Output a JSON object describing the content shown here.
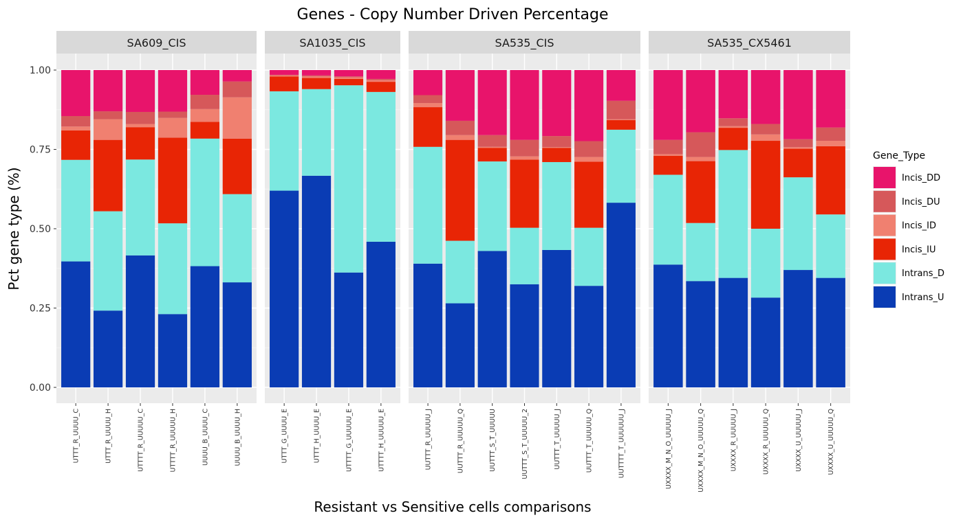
{
  "chart_data": {
    "type": "bar",
    "stacked": true,
    "title": "Genes - Copy Number Driven Percentage",
    "xlabel": "Resistant vs Sensitive cells comparisons",
    "ylabel": "Pct gene type (%)",
    "ylim": [
      0,
      1
    ],
    "yticks": [
      "0.00",
      "0.25",
      "0.50",
      "0.75",
      "1.00"
    ],
    "grid": true,
    "legend": {
      "title": "Gene_Type",
      "position": "right",
      "entries": [
        "Incis_DD",
        "Incis_DU",
        "Incis_ID",
        "Incis_IU",
        "Intrans_D",
        "Intrans_U"
      ]
    },
    "colors": {
      "Incis_DD": "#e8146b",
      "Incis_DU": "#d6585a",
      "Incis_ID": "#f08070",
      "Incis_IU": "#e82505",
      "Intrans_D": "#7be8e0",
      "Intrans_U": "#0a3cb4"
    },
    "stack_order": [
      "Intrans_U",
      "Intrans_D",
      "Incis_IU",
      "Incis_ID",
      "Incis_DU",
      "Incis_DD"
    ],
    "facets": [
      {
        "name": "SA609_CIS",
        "categories": [
          "UTTT_R_UUUU_C",
          "UTTT_R_UUUU_H",
          "UTTTT_R_UUUUU_C",
          "UTTTT_R_UUUUU_H",
          "UUUU_B_UUUU_C",
          "UUUU_B_UUUU_H"
        ],
        "series": [
          {
            "name": "Intrans_U",
            "values": [
              0.397,
              0.242,
              0.416,
              0.231,
              0.382,
              0.331
            ]
          },
          {
            "name": "Intrans_D",
            "values": [
              0.32,
              0.313,
              0.302,
              0.286,
              0.402,
              0.278
            ]
          },
          {
            "name": "Incis_IU",
            "values": [
              0.093,
              0.225,
              0.102,
              0.27,
              0.053,
              0.175
            ]
          },
          {
            "name": "Incis_ID",
            "values": [
              0.012,
              0.065,
              0.01,
              0.062,
              0.04,
              0.13
            ]
          },
          {
            "name": "Incis_DU",
            "values": [
              0.033,
              0.025,
              0.038,
              0.02,
              0.045,
              0.05
            ]
          },
          {
            "name": "Incis_DD",
            "values": [
              0.145,
              0.13,
              0.132,
              0.131,
              0.078,
              0.036
            ]
          }
        ]
      },
      {
        "name": "SA1035_CIS",
        "categories": [
          "UTTT_G_UUUU_E",
          "UTTT_H_UUUU_E",
          "UTTTT_G_UUUUU_E",
          "UTTTT_H_UUUUU_E"
        ],
        "series": [
          {
            "name": "Intrans_U",
            "values": [
              0.62,
              0.667,
              0.362,
              0.459
            ]
          },
          {
            "name": "Intrans_D",
            "values": [
              0.313,
              0.273,
              0.59,
              0.472
            ]
          },
          {
            "name": "Incis_IU",
            "values": [
              0.047,
              0.035,
              0.02,
              0.032
            ]
          },
          {
            "name": "Incis_ID",
            "values": [
              0.003,
              0.005,
              0.005,
              0.005
            ]
          },
          {
            "name": "Incis_DU",
            "values": [
              0.002,
              0.003,
              0.003,
              0.004
            ]
          },
          {
            "name": "Incis_DD",
            "values": [
              0.015,
              0.017,
              0.02,
              0.028
            ]
          }
        ]
      },
      {
        "name": "SA535_CIS",
        "categories": [
          "UUTTT_R_UUUUU_J",
          "UUTTT_R_UUUUU_Q",
          "UUTTT_S_T_UUUUU",
          "UUTTT_S_T_UUUUU_2",
          "UUTTT_T_UUUUU_J",
          "UUTTT_T_UUUUU_Q",
          "UUTTTT_T_UUUUUU_J"
        ],
        "series": [
          {
            "name": "Intrans_U",
            "values": [
              0.39,
              0.265,
              0.43,
              0.325,
              0.433,
              0.32,
              0.582
            ]
          },
          {
            "name": "Intrans_D",
            "values": [
              0.368,
              0.197,
              0.282,
              0.178,
              0.277,
              0.183,
              0.23
            ]
          },
          {
            "name": "Incis_IU",
            "values": [
              0.125,
              0.318,
              0.043,
              0.215,
              0.045,
              0.208,
              0.03
            ]
          },
          {
            "name": "Incis_ID",
            "values": [
              0.013,
              0.015,
              0.003,
              0.01,
              0.002,
              0.015,
              0.003
            ]
          },
          {
            "name": "Incis_DU",
            "values": [
              0.025,
              0.045,
              0.037,
              0.052,
              0.035,
              0.05,
              0.058
            ]
          },
          {
            "name": "Incis_DD",
            "values": [
              0.079,
              0.16,
              0.205,
              0.22,
              0.208,
              0.224,
              0.097
            ]
          }
        ]
      },
      {
        "name": "SA535_CX5461",
        "categories": [
          "UXXXX_M_N_O_UUUUU_J",
          "UXXXX_M_N_O_UUUUU_Q",
          "UXXXX_R_UUUUU_J",
          "UXXXX_R_UUUUU_Q",
          "UXXXX_U_UUUUU_J",
          "UXXXX_U_UUUUU_Q"
        ],
        "series": [
          {
            "name": "Intrans_U",
            "values": [
              0.387,
              0.335,
              0.345,
              0.283,
              0.37,
              0.345
            ]
          },
          {
            "name": "Intrans_D",
            "values": [
              0.283,
              0.183,
              0.403,
              0.217,
              0.292,
              0.2
            ]
          },
          {
            "name": "Incis_IU",
            "values": [
              0.06,
              0.195,
              0.07,
              0.277,
              0.09,
              0.215
            ]
          },
          {
            "name": "Incis_ID",
            "values": [
              0.005,
              0.013,
              0.005,
              0.02,
              0.005,
              0.017
            ]
          },
          {
            "name": "Incis_DU",
            "values": [
              0.045,
              0.078,
              0.025,
              0.033,
              0.025,
              0.042
            ]
          },
          {
            "name": "Incis_DD",
            "values": [
              0.22,
              0.196,
              0.152,
              0.17,
              0.218,
              0.181
            ]
          }
        ]
      }
    ]
  }
}
